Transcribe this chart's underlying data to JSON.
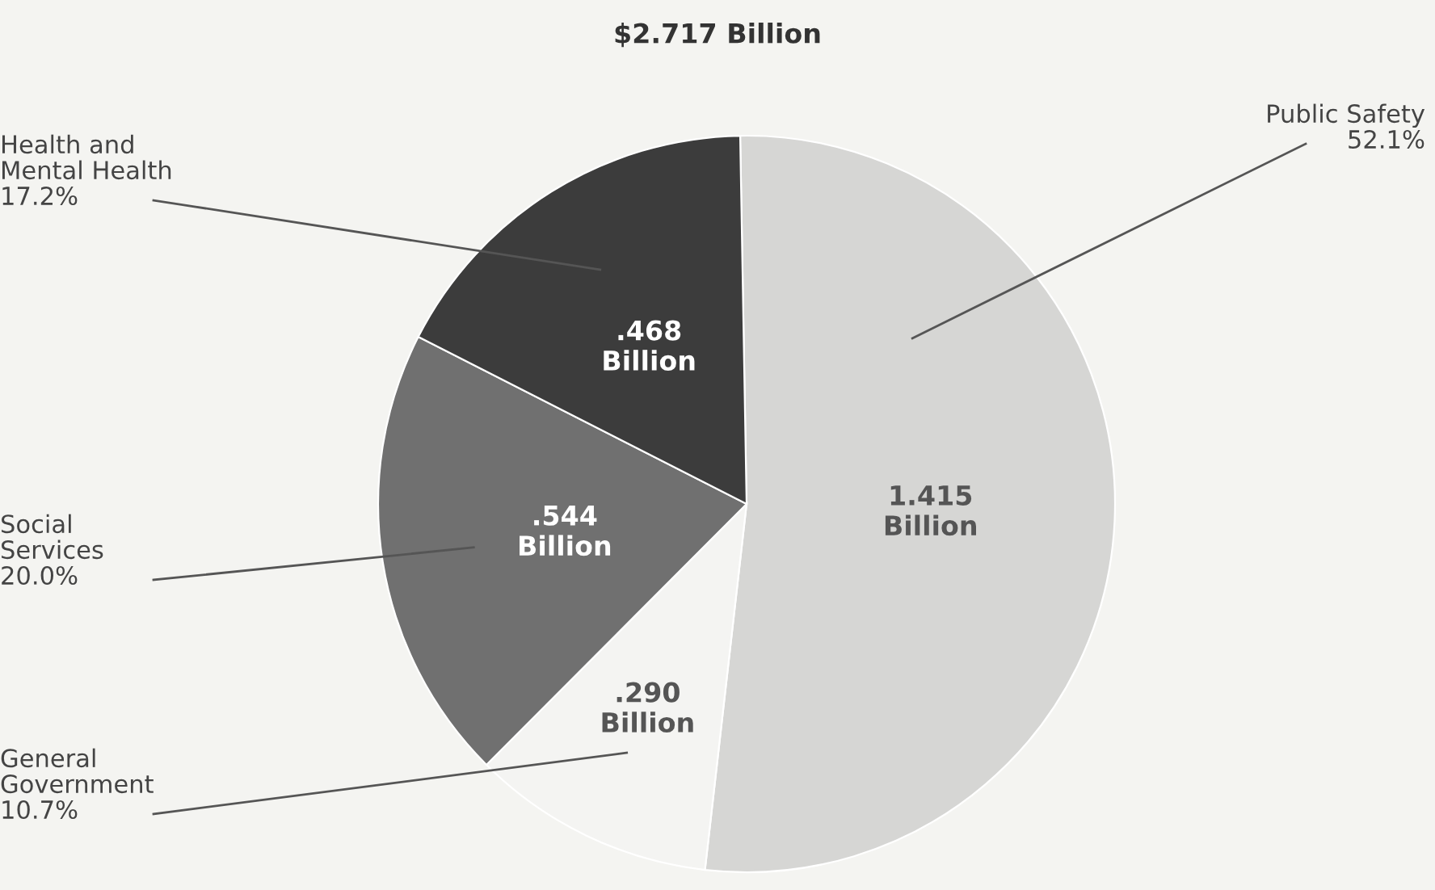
{
  "chart_data": {
    "type": "pie",
    "title": "$2.717 Billion",
    "categories": [
      "Public Safety\n52.1%",
      "General\nGovernment\n10.7%",
      "Social\nServices\n20.0%",
      "Health and\nMental Health\n17.2%"
    ],
    "values": [
      1.415,
      0.29,
      0.544,
      0.468
    ],
    "value_labels": [
      "1.415\nBillion",
      ".290\nBillion",
      ".544\nBillion",
      ".468\nBillion"
    ],
    "colors": [
      "#d6d6d4",
      "#f4f4f2",
      "#707070",
      "#3c3c3c"
    ]
  }
}
